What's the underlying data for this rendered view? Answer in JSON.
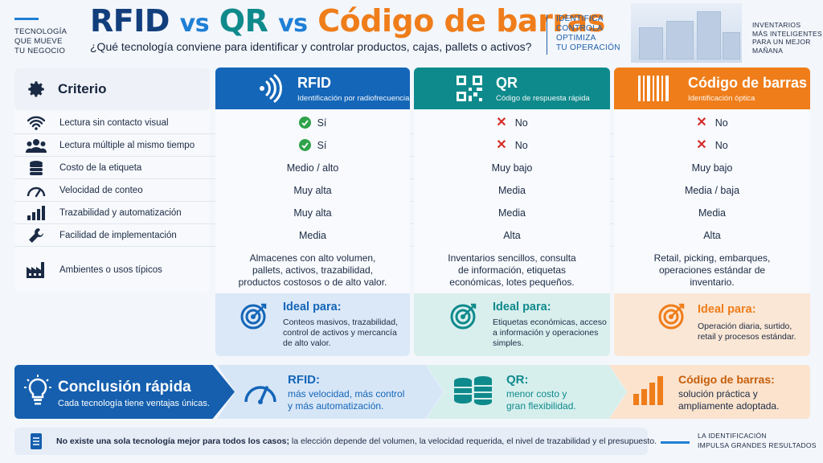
{
  "left_tag": [
    "TECNOLOGÍA",
    "QUE MUEVE",
    "TU NEGOCIO"
  ],
  "title": {
    "rfid": "RFID",
    "vs1": "vs",
    "qr": "QR",
    "vs2": "vs",
    "barcode": "Código de barras"
  },
  "subtitle": "¿Qué tecnología conviene para identificar y controlar productos, cajas, pallets o activos?",
  "mid_tag": [
    "IDENTIFICA",
    "CONTROLA",
    "OPTIMIZA",
    "TU OPERACIÓN"
  ],
  "right_tag": [
    "INVENTARIOS",
    "MÁS INTELIGENTES",
    "PARA UN MEJOR",
    "MAÑANA"
  ],
  "criteria_header": "Criterio",
  "criteria": [
    {
      "label": "Lectura sin contacto visual",
      "icon": "wifi-icon"
    },
    {
      "label": "Lectura múltiple al mismo tiempo",
      "icon": "people-icon"
    },
    {
      "label": "Costo de la etiqueta",
      "icon": "coins-icon"
    },
    {
      "label": "Velocidad de conteo",
      "icon": "speedometer-icon"
    },
    {
      "label": "Trazabilidad y automatización",
      "icon": "bar-chart-icon"
    },
    {
      "label": "Facilidad de implementación",
      "icon": "wrench-icon"
    },
    {
      "label": "Ambientes o usos típicos",
      "icon": "factory-icon"
    }
  ],
  "columns": {
    "rfid": {
      "name": "RFID",
      "sub": "Identificación por radiofrecuencia",
      "color": "#1466b8",
      "values": [
        "Sí",
        "Sí",
        "Medio / alto",
        "Muy alta",
        "Muy alta",
        "Media"
      ],
      "uses": [
        "Almacenes con alto volumen,",
        "pallets, activos, trazabilidad,",
        "productos costosos o de alto valor."
      ],
      "ideal_title": "Ideal para:",
      "ideal_desc": [
        "Conteos masivos, trazabilidad,",
        "control de activos y mercancía",
        "de alto valor."
      ]
    },
    "qr": {
      "name": "QR",
      "sub": "Código de respuesta rápida",
      "color": "#0f8a8c",
      "values": [
        "No",
        "No",
        "Muy bajo",
        "Media",
        "Media",
        "Alta"
      ],
      "uses": [
        "Inventarios sencillos, consulta",
        "de información, etiquetas",
        "económicas, lotes pequeños."
      ],
      "ideal_title": "Ideal para:",
      "ideal_desc": [
        "Etiquetas económicas, acceso",
        "a información y operaciones",
        "simples."
      ]
    },
    "barcode": {
      "name": "Código de barras",
      "sub": "Identificación óptica",
      "color": "#ef7d1a",
      "values": [
        "No",
        "No",
        "Muy bajo",
        "Media / baja",
        "Media",
        "Alta"
      ],
      "uses": [
        "Retail, picking, embarques,",
        "operaciones estándar de",
        "inventario."
      ],
      "ideal_title": "Ideal para:",
      "ideal_desc": [
        "Operación diaria, surtido,",
        "retail y procesos estándar."
      ]
    }
  },
  "conclusion": {
    "title": "Conclusión rápida",
    "sub": "Cada tecnología tiene ventajas únicas.",
    "rfid_title": "RFID:",
    "rfid_desc": [
      "más velocidad, más control",
      "y más automatización."
    ],
    "qr_title": "QR:",
    "qr_desc": [
      "menor costo y",
      "gran flexibilidad."
    ],
    "barcode_title": "Código de barras:",
    "barcode_desc": [
      "solución práctica y",
      "ampliamente adoptada."
    ]
  },
  "footer": {
    "bold": "No existe una sola tecnología mejor para todos los casos;",
    "rest": " la elección depende del volumen, la velocidad requerida, el nivel de trazabilidad y el presupuesto."
  },
  "bottom_tag": [
    "LA IDENTIFICACIÓN",
    "IMPULSA GRANDES RESULTADOS"
  ]
}
